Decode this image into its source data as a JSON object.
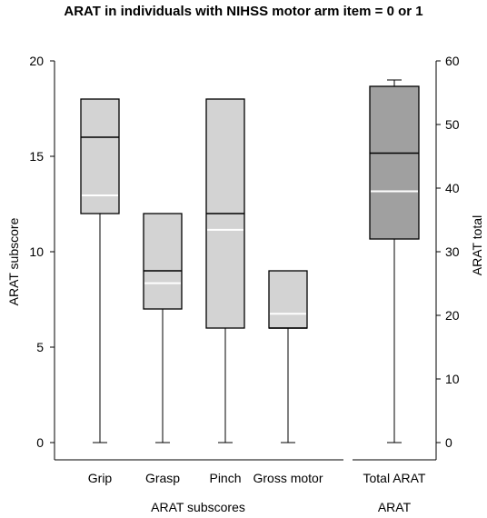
{
  "chart_data": [
    {
      "type": "box",
      "title": "ARAT in individuals with NIHSS motor arm item = 0 or 1",
      "xlabel": "ARAT subscores",
      "ylabel": "ARAT subscore",
      "ylim": [
        0,
        20
      ],
      "yticks": [
        "0",
        "5",
        "10",
        "15",
        "20"
      ],
      "box_color": "#d3d3d3",
      "median_color": "#000000",
      "mean_color": "#ffffff",
      "categories": [
        "Grip",
        "Grasp",
        "Pinch",
        "Gross motor"
      ],
      "boxes": [
        {
          "min": 0,
          "q1": 12,
          "median": 16,
          "q3": 18,
          "max": 18,
          "mean": 12.95
        },
        {
          "min": 0,
          "q1": 7,
          "median": 9,
          "q3": 12,
          "max": 12,
          "mean": 8.35
        },
        {
          "min": 0,
          "q1": 6,
          "median": 12,
          "q3": 18,
          "max": 18,
          "mean": 11.15
        },
        {
          "min": 0,
          "q1": 6,
          "median": 6,
          "q3": 9,
          "max": 9,
          "mean": 6.75
        }
      ]
    },
    {
      "type": "box",
      "xlabel": "ARAT",
      "ylabel": "ARAT total",
      "ylim": [
        0,
        60
      ],
      "yticks": [
        "0",
        "10",
        "20",
        "30",
        "40",
        "50",
        "60"
      ],
      "box_color": "#a0a0a0",
      "median_color": "#000000",
      "mean_color": "#ffffff",
      "categories": [
        "Total ARAT"
      ],
      "boxes": [
        {
          "min": 0,
          "q1": 32,
          "median": 45.5,
          "q3": 56,
          "max": 57,
          "mean": 39.5
        }
      ]
    }
  ]
}
